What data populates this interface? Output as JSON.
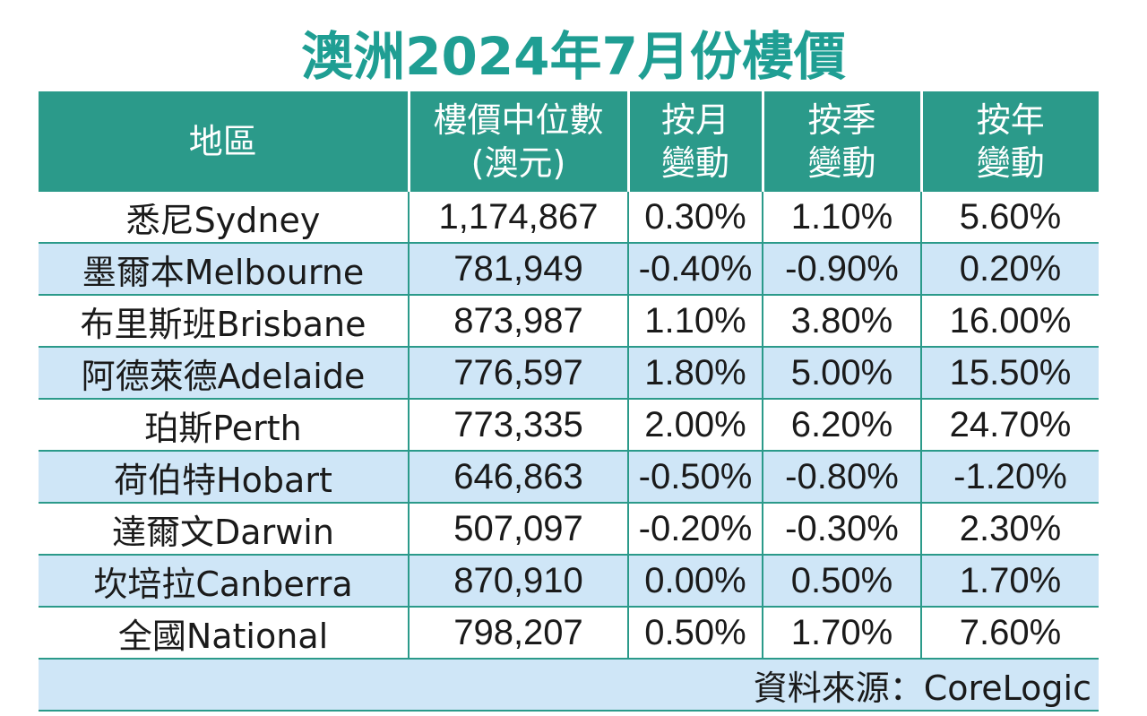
{
  "title": "澳洲2024年7月份樓價",
  "headers": [
    {
      "line1": "地區",
      "line2": ""
    },
    {
      "line1": "樓價中位數",
      "line2": "(澳元)"
    },
    {
      "line1": "按月",
      "line2": "變動"
    },
    {
      "line1": "按季",
      "line2": "變動"
    },
    {
      "line1": "按年",
      "line2": "變動"
    }
  ],
  "rows": [
    {
      "region": "悉尼Sydney",
      "median": "1,174,867",
      "mom": "0.30%",
      "qoq": "1.10%",
      "yoy": "5.60%"
    },
    {
      "region": "墨爾本Melbourne",
      "median": "781,949",
      "mom": "-0.40%",
      "qoq": "-0.90%",
      "yoy": "0.20%"
    },
    {
      "region": "布里斯班Brisbane",
      "median": "873,987",
      "mom": "1.10%",
      "qoq": "3.80%",
      "yoy": "16.00%"
    },
    {
      "region": "阿德萊德Adelaide",
      "median": "776,597",
      "mom": "1.80%",
      "qoq": "5.00%",
      "yoy": "15.50%"
    },
    {
      "region": "珀斯Perth",
      "median": "773,335",
      "mom": "2.00%",
      "qoq": "6.20%",
      "yoy": "24.70%"
    },
    {
      "region": "荷伯特Hobart",
      "median": "646,863",
      "mom": "-0.50%",
      "qoq": "-0.80%",
      "yoy": "-1.20%"
    },
    {
      "region": "達爾文Darwin",
      "median": "507,097",
      "mom": "-0.20%",
      "qoq": "-0.30%",
      "yoy": "2.30%"
    },
    {
      "region": "坎培拉Canberra",
      "median": "870,910",
      "mom": "0.00%",
      "qoq": "0.50%",
      "yoy": "1.70%"
    },
    {
      "region": "全國National",
      "median": "798,207",
      "mom": "0.50%",
      "qoq": "1.70%",
      "yoy": "7.60%"
    }
  ],
  "source": "資料來源：CoreLogic",
  "colors": {
    "title": "#1f9e93",
    "header_bg": "#2b9a8a",
    "stripe_bg": "#cfe6f7"
  },
  "chart_data": {
    "type": "table",
    "title": "澳洲2024年7月份樓價",
    "columns": [
      "地區",
      "樓價中位數(澳元)",
      "按月變動",
      "按季變動",
      "按年變動"
    ],
    "rows": [
      [
        "悉尼Sydney",
        1174867,
        0.3,
        1.1,
        5.6
      ],
      [
        "墨爾本Melbourne",
        781949,
        -0.4,
        -0.9,
        0.2
      ],
      [
        "布里斯班Brisbane",
        873987,
        1.1,
        3.8,
        16.0
      ],
      [
        "阿德萊德Adelaide",
        776597,
        1.8,
        5.0,
        15.5
      ],
      [
        "珀斯Perth",
        773335,
        2.0,
        6.2,
        24.7
      ],
      [
        "荷伯特Hobart",
        646863,
        -0.5,
        -0.8,
        -1.2
      ],
      [
        "達爾文Darwin",
        507097,
        -0.2,
        -0.3,
        2.3
      ],
      [
        "坎培拉Canberra",
        870910,
        0.0,
        0.5,
        1.7
      ],
      [
        "全國National",
        798207,
        0.5,
        1.7,
        7.6
      ]
    ],
    "source": "資料來源：CoreLogic"
  }
}
